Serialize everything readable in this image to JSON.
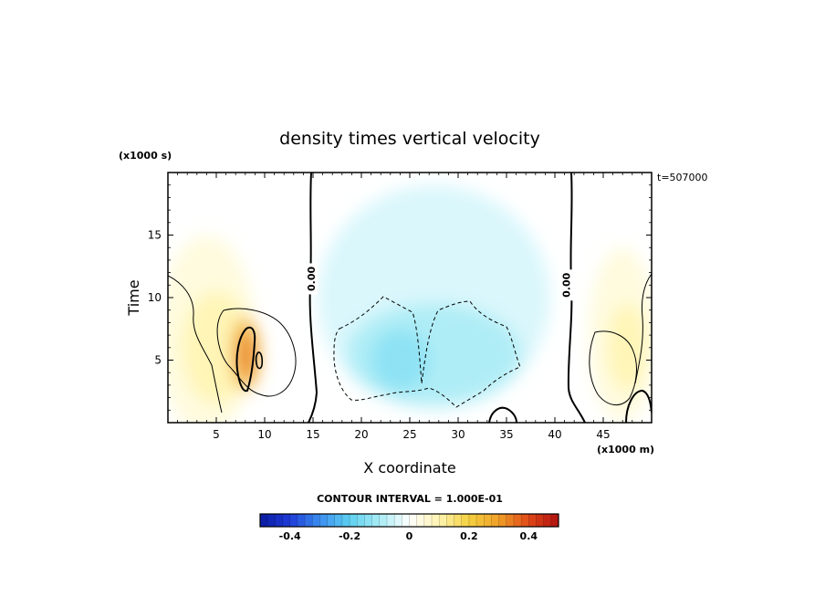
{
  "chart_data": {
    "type": "heatmap",
    "title": "density times vertical velocity",
    "xlabel": "X coordinate",
    "ylabel": "Time",
    "x_unit": "(x1000 m)",
    "y_unit": "(x1000 s)",
    "corner_label": "t=507000",
    "xlim": [
      0,
      50
    ],
    "ylim": [
      0,
      20
    ],
    "x_ticks": [
      5,
      10,
      15,
      20,
      25,
      30,
      35,
      40,
      45
    ],
    "y_ticks": [
      5,
      10,
      15
    ],
    "contour_interval_text": "CONTOUR INTERVAL = 1.000E-01",
    "contour_labels": [
      {
        "x": 14.8,
        "y": 11.5,
        "text": "0.00"
      },
      {
        "x": 41.2,
        "y": 11.0,
        "text": "0.00"
      }
    ],
    "colorbar": {
      "range": [
        -0.5,
        0.5
      ],
      "tick_values": [
        -0.4,
        -0.2,
        0,
        0.2,
        0.4
      ],
      "tick_labels": [
        "-0.4",
        "-0.2",
        "0",
        "0.2",
        "0.4"
      ],
      "stops": [
        {
          "v": -0.5,
          "c": "#0a1aa0"
        },
        {
          "v": -0.4,
          "c": "#1e3cd8"
        },
        {
          "v": -0.3,
          "c": "#3c8ef0"
        },
        {
          "v": -0.2,
          "c": "#5cd0f0"
        },
        {
          "v": -0.1,
          "c": "#a8ecf6"
        },
        {
          "v": 0.0,
          "c": "#ffffff"
        },
        {
          "v": 0.1,
          "c": "#fff4b0"
        },
        {
          "v": 0.2,
          "c": "#f5d040"
        },
        {
          "v": 0.3,
          "c": "#f0a028"
        },
        {
          "v": 0.4,
          "c": "#e04818"
        },
        {
          "v": 0.5,
          "c": "#b01010"
        }
      ]
    },
    "field_blobs": [
      {
        "x": 4,
        "y": 7,
        "rx": 5,
        "ry": 8,
        "value": 0.05
      },
      {
        "x": 5,
        "y": 6,
        "rx": 3.5,
        "ry": 4.5,
        "value": 0.1
      },
      {
        "x": 8,
        "y": 5.5,
        "rx": 1.5,
        "ry": 3,
        "value": 0.25
      },
      {
        "x": 8.1,
        "y": 5.4,
        "rx": 0.8,
        "ry": 2,
        "value": 0.35
      },
      {
        "x": 27.5,
        "y": 10,
        "rx": 12,
        "ry": 9,
        "value": -0.05
      },
      {
        "x": 27.5,
        "y": 5.5,
        "rx": 9,
        "ry": 4,
        "value": -0.1
      },
      {
        "x": 24,
        "y": 5,
        "rx": 3,
        "ry": 2.5,
        "value": -0.14
      },
      {
        "x": 47,
        "y": 7,
        "rx": 3.5,
        "ry": 7,
        "value": 0.05
      },
      {
        "x": 47.5,
        "y": 6,
        "rx": 2,
        "ry": 3.5,
        "value": 0.1
      }
    ]
  }
}
